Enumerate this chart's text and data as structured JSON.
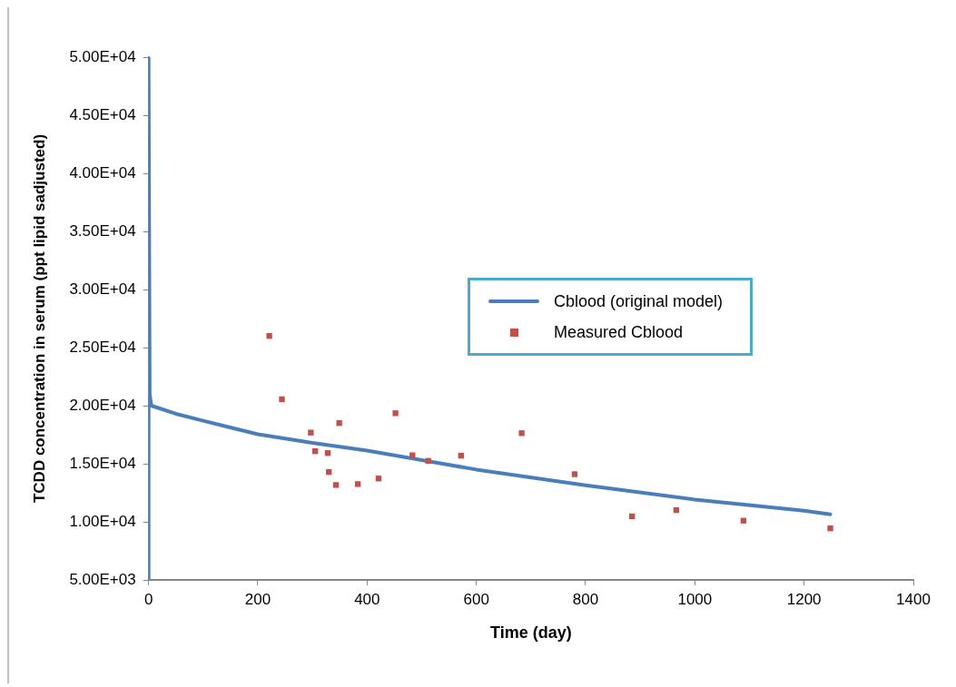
{
  "chart_data": {
    "type": "scatter",
    "xlabel": "Time (day)",
    "ylabel": "TCDD concentration in serum (ppt lipid sadjusted)",
    "xlim": [
      0,
      1400
    ],
    "xticks": [
      0,
      200,
      400,
      600,
      800,
      1000,
      1200,
      1400
    ],
    "ylim": [
      5000,
      50000
    ],
    "yticks": [
      {
        "value": 5000,
        "label": "5.00E+03"
      },
      {
        "value": 10000,
        "label": "1.00E+04"
      },
      {
        "value": 15000,
        "label": "1.50E+04"
      },
      {
        "value": 20000,
        "label": "2.00E+04"
      },
      {
        "value": 25000,
        "label": "2.50E+04"
      },
      {
        "value": 30000,
        "label": "3.00E+04"
      },
      {
        "value": 35000,
        "label": "3.50E+04"
      },
      {
        "value": 40000,
        "label": "4.00E+04"
      },
      {
        "value": 45000,
        "label": "4.50E+04"
      },
      {
        "value": 50000,
        "label": "5.00E+04"
      }
    ],
    "grid": false,
    "legend": "right",
    "series": [
      {
        "name": "Cblood (original model)",
        "type": "line",
        "color": "#4a7ebb",
        "marker": "none",
        "x": [
          0,
          0,
          2,
          5,
          50,
          100,
          200,
          300,
          400,
          600,
          800,
          1000,
          1200,
          1248
        ],
        "values": [
          5000,
          50000,
          21000,
          20000,
          19300,
          18700,
          17540,
          16800,
          16130,
          14500,
          13150,
          11920,
          10960,
          10640
        ]
      },
      {
        "name": "Measured Cblood",
        "color": "#c0504d",
        "marker": "square",
        "x": [
          221,
          244,
          297,
          305,
          328,
          330,
          343,
          349,
          383,
          421,
          452,
          483,
          512,
          572,
          683,
          780,
          885,
          966,
          1089,
          1248
        ],
        "values": [
          26000,
          20550,
          17680,
          16080,
          15920,
          14290,
          13170,
          18500,
          13250,
          13730,
          19350,
          15730,
          15250,
          15700,
          17630,
          14100,
          10470,
          11010,
          10100,
          9440
        ]
      }
    ]
  }
}
